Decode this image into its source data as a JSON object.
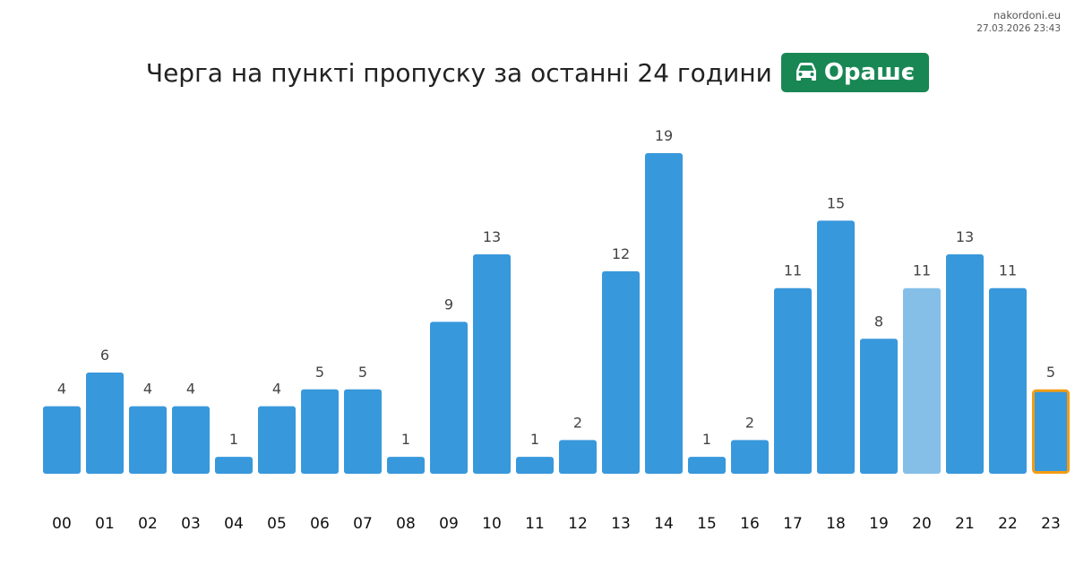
{
  "meta": {
    "site": "nakordoni.eu",
    "timestamp": "27.03.2026 23:43"
  },
  "header": {
    "title": "Черга на пункті пропуску за останні 24 години",
    "badge_label": "Орашє",
    "badge_icon": "car-icon",
    "badge_color": "#198754"
  },
  "chart_data": {
    "type": "bar",
    "title": "Черга на пункті пропуску за останні 24 години",
    "xlabel": "",
    "ylabel": "",
    "categories": [
      "00",
      "01",
      "02",
      "03",
      "04",
      "05",
      "06",
      "07",
      "08",
      "09",
      "10",
      "11",
      "12",
      "13",
      "14",
      "15",
      "16",
      "17",
      "18",
      "19",
      "20",
      "21",
      "22",
      "23"
    ],
    "values": [
      4,
      6,
      4,
      4,
      1,
      4,
      5,
      5,
      1,
      9,
      13,
      1,
      2,
      12,
      19,
      1,
      2,
      11,
      15,
      8,
      11,
      13,
      11,
      5
    ],
    "ylim": [
      0,
      19
    ],
    "grid": false,
    "colors": {
      "bar": "#3898dc",
      "bar_light": "#85bfe7",
      "current_outline": "#f39c12"
    },
    "light_index": 20,
    "current_index": 23
  }
}
